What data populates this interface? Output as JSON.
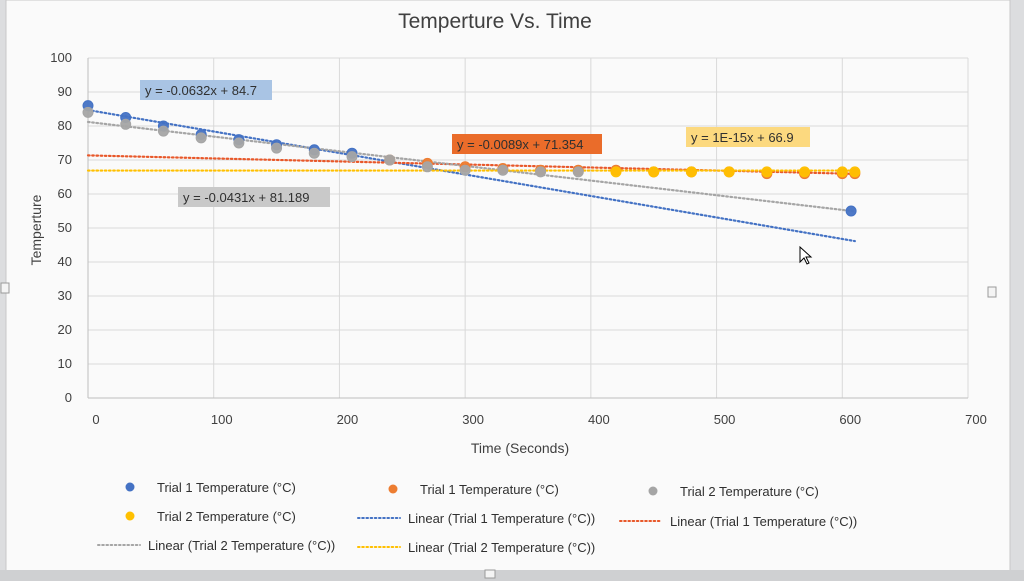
{
  "chart_data": {
    "type": "scatter",
    "title": "Temperture Vs. Time",
    "xlabel": "Time (Seconds)",
    "ylabel": "Temperture",
    "xlim": [
      0,
      700
    ],
    "ylim": [
      0,
      100
    ],
    "x_ticks": [
      "0",
      "100",
      "200",
      "300",
      "400",
      "500",
      "600",
      "700"
    ],
    "y_ticks": [
      "0",
      "10",
      "20",
      "30",
      "40",
      "50",
      "60",
      "70",
      "80",
      "90",
      "100"
    ],
    "grid": true,
    "legend_position": "bottom",
    "series": [
      {
        "name": "Trial 1 Temperature (°C)",
        "color": "#4472c4",
        "points": [
          [
            0,
            86
          ],
          [
            30,
            82.5
          ],
          [
            60,
            80
          ],
          [
            90,
            77.5
          ],
          [
            120,
            76
          ],
          [
            150,
            74.5
          ],
          [
            180,
            73
          ],
          [
            210,
            72
          ],
          [
            607,
            55
          ]
        ]
      },
      {
        "name": "Trial 1 Temperature (°C)",
        "color": "#ed7d31",
        "points": [
          [
            240,
            70
          ],
          [
            270,
            69
          ],
          [
            300,
            68
          ],
          [
            330,
            67.5
          ],
          [
            360,
            67
          ],
          [
            390,
            67
          ],
          [
            420,
            67
          ],
          [
            450,
            66.5
          ],
          [
            480,
            66.5
          ],
          [
            510,
            66.5
          ],
          [
            540,
            66
          ],
          [
            570,
            66
          ],
          [
            600,
            66
          ],
          [
            610,
            66
          ]
        ]
      },
      {
        "name": "Trial 2 Temperature (°C)",
        "color": "#a5a5a5",
        "points": [
          [
            0,
            84
          ],
          [
            30,
            80.5
          ],
          [
            60,
            78.5
          ],
          [
            90,
            76.5
          ],
          [
            120,
            75
          ],
          [
            150,
            73.5
          ],
          [
            180,
            72
          ],
          [
            210,
            71
          ],
          [
            240,
            70
          ],
          [
            270,
            68
          ],
          [
            300,
            67
          ],
          [
            330,
            67
          ],
          [
            360,
            66.5
          ],
          [
            390,
            66.5
          ]
        ]
      },
      {
        "name": "Trial 2 Temperature (°C)",
        "color": "#ffc000",
        "points": [
          [
            420,
            66.5
          ],
          [
            450,
            66.5
          ],
          [
            480,
            66.5
          ],
          [
            510,
            66.5
          ],
          [
            540,
            66.5
          ],
          [
            570,
            66.5
          ],
          [
            600,
            66.5
          ],
          [
            610,
            66.5
          ]
        ]
      },
      {
        "name": "Linear (Trial 1 Temperature (°C))",
        "color": "#4472c4",
        "style": "dotted-trendline",
        "trend": {
          "slope": -0.0632,
          "intercept": 84.7,
          "x_range": [
            0,
            610
          ]
        }
      },
      {
        "name": "Linear (Trial 1 Temperature (°C))",
        "color": "#e8582a",
        "style": "dotted-trendline",
        "trend": {
          "slope": -0.0089,
          "intercept": 71.354,
          "x_range": [
            0,
            610
          ]
        }
      },
      {
        "name": "Linear (Trial 2 Temperature (°C))",
        "color": "#a5a5a5",
        "style": "dotted-trendline",
        "trend": {
          "slope": -0.0431,
          "intercept": 81.189,
          "x_range": [
            0,
            610
          ]
        }
      },
      {
        "name": "Linear (Trial 2 Temperature (°C))",
        "color": "#ffc000",
        "style": "dotted-trendline",
        "trend": {
          "slope": 0,
          "intercept": 66.9,
          "x_range": [
            0,
            610
          ]
        }
      }
    ],
    "annotations": [
      {
        "text": "y = -0.0632x + 84.7",
        "bg": "#a9c4e4",
        "fg": "#303030"
      },
      {
        "text": "y = -0.0089x + 71.354",
        "bg": "#ea6c2a",
        "fg": "#ffffff"
      },
      {
        "text": "y = 1E-15x + 66.9",
        "bg": "#fcd97f",
        "fg": "#303030"
      },
      {
        "text": "y = -0.0431x + 81.189",
        "bg": "#c9c9c9",
        "fg": "#303030"
      }
    ]
  }
}
